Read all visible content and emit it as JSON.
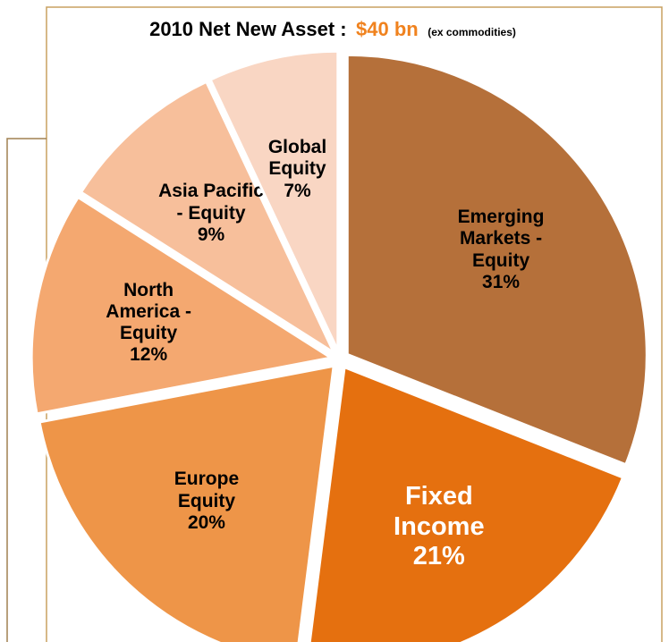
{
  "chart_data": {
    "type": "pie",
    "title": "2010 Net New Asset :",
    "title_value": "$40 bn",
    "title_note": "(ex commodities)",
    "categories": [
      "Emerging Markets - Equity",
      "Fixed Income",
      "Europe Equity",
      "North America - Equity",
      "Asia Pacific - Equity",
      "Global Equity"
    ],
    "values": [
      31,
      21,
      20,
      12,
      9,
      7
    ],
    "value_labels": [
      "31%",
      "21%",
      "20%",
      "12%",
      "9%",
      "7%"
    ],
    "colors": [
      "#b5703a",
      "#e5700f",
      "#ee9548",
      "#f4a870",
      "#f7bf9b",
      "#f9d6c3"
    ],
    "label_colors": [
      "#000000",
      "#ffffff",
      "#000000",
      "#000000",
      "#000000",
      "#000000"
    ]
  }
}
